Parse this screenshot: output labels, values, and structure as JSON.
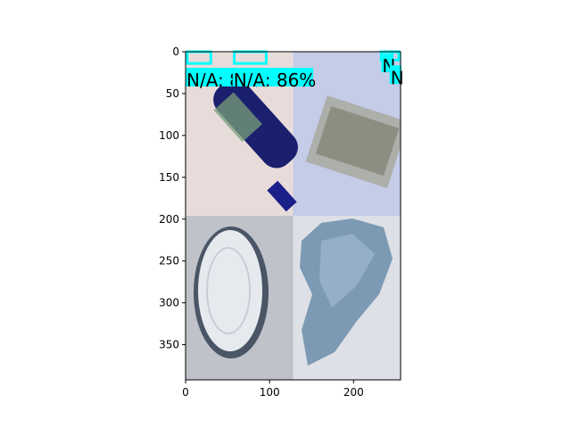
{
  "chart_data": {
    "type": "image",
    "title": "",
    "xlabel": "",
    "ylabel": "",
    "xlim": [
      0,
      256
    ],
    "ylim": [
      392,
      0
    ],
    "x_ticks": [
      0,
      100,
      200
    ],
    "y_ticks": [
      0,
      50,
      100,
      150,
      200,
      250,
      300,
      350
    ],
    "grid": false,
    "accent_color": "#00ffff",
    "panels": [
      {
        "name": "blue-bottle-photo",
        "x0": 0,
        "x1": 128,
        "y0": 0,
        "y1": 196,
        "background": "#e8dcda"
      },
      {
        "name": "clear-bottle-photo",
        "x0": 128,
        "x1": 256,
        "y0": 0,
        "y1": 196,
        "background": "#c4cce8"
      },
      {
        "name": "plastic-lid-photo",
        "x0": 0,
        "x1": 128,
        "y0": 196,
        "y1": 392,
        "background": "#bfc3c9"
      },
      {
        "name": "crumpled-paper-photo",
        "x0": 128,
        "x1": 256,
        "y0": 196,
        "y1": 392,
        "background": "#dde0e6"
      }
    ],
    "detections": [
      {
        "label": "N/A: 85%",
        "x": 0,
        "y": 31,
        "w": 58,
        "h": 18
      },
      {
        "label": "N/A: 86%",
        "x": 56,
        "y": 31,
        "w": 96,
        "h": 18
      },
      {
        "label": "N",
        "x": 233,
        "y": 14,
        "w": 14,
        "h": 18
      },
      {
        "label": "N",
        "x": 243,
        "y": 28,
        "w": 14,
        "h": 18
      }
    ],
    "detection_boxes": [
      {
        "x": 2,
        "y": 0,
        "w": 28,
        "h": 14
      },
      {
        "x": 58,
        "y": 0,
        "w": 38,
        "h": 14
      },
      {
        "x": 233,
        "y": 0,
        "w": 12,
        "h": 10
      },
      {
        "x": 246,
        "y": 0,
        "w": 8,
        "h": 10
      }
    ]
  }
}
